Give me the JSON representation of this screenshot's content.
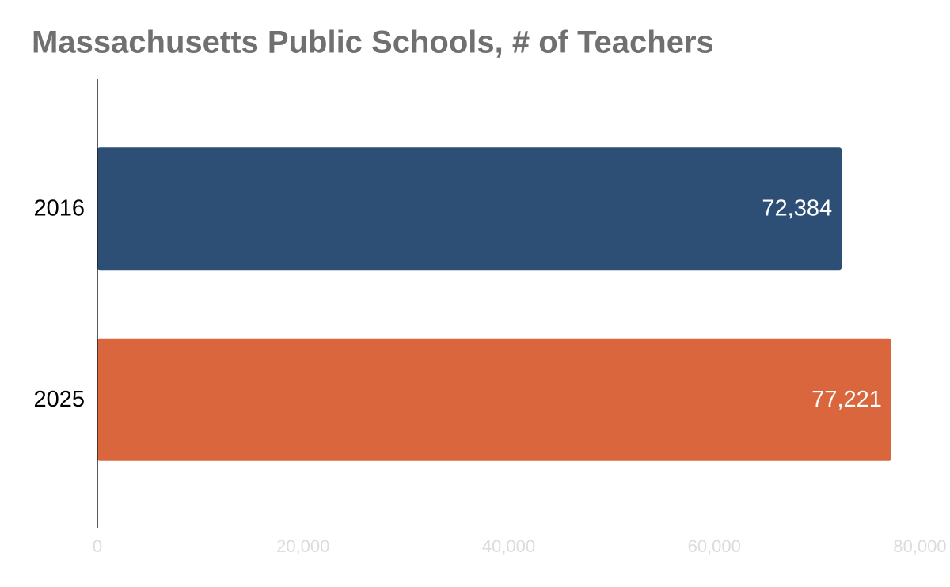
{
  "chart_data": {
    "type": "bar",
    "orientation": "horizontal",
    "title": "Massachusetts Public Schools, # of Teachers",
    "categories": [
      "2016",
      "2025"
    ],
    "values": [
      72384,
      77221
    ],
    "value_labels": [
      "72,384",
      "77,221"
    ],
    "colors": [
      "#2d4e75",
      "#d9663d"
    ],
    "xlim": [
      0,
      80000
    ],
    "xticks": [
      0,
      {
        "value": 20000,
        "label": "20,000"
      },
      {
        "value": 40000,
        "label": "40,000"
      },
      {
        "value": 60000,
        "label": "60,000"
      },
      {
        "value": 80000,
        "label": "80,000"
      }
    ],
    "grid": false
  }
}
